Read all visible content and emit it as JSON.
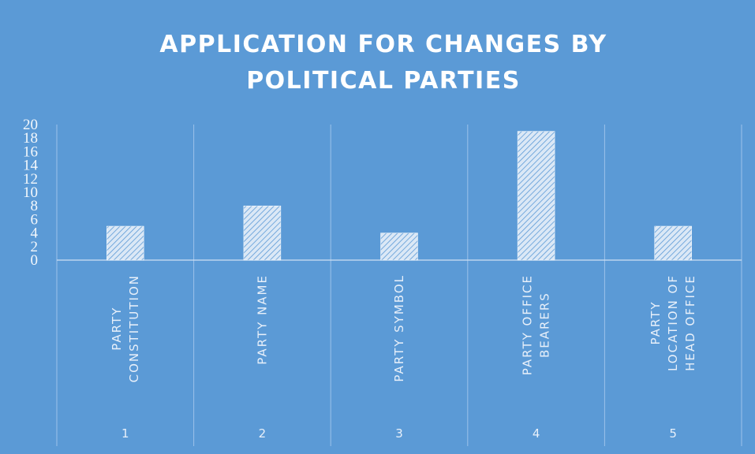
{
  "chart_data": {
    "type": "bar",
    "title": [
      "APPLICATION FOR CHANGES BY",
      "POLITICAL PARTIES"
    ],
    "categories": [
      [
        "PARTY",
        "CONSTITUTION"
      ],
      [
        "PARTY NAME"
      ],
      [
        "PARTY SYMBOL"
      ],
      [
        "PARTY OFFICE",
        "BEARERS"
      ],
      [
        "PARTY",
        "LOCATION OF",
        "HEAD OFFICE"
      ]
    ],
    "category_numbers": [
      "1",
      "2",
      "3",
      "4",
      "5"
    ],
    "values": [
      5,
      8,
      4,
      19,
      5
    ],
    "color": "#ffffff",
    "ylim": [
      0,
      20
    ],
    "yticks": [
      0,
      2,
      4,
      6,
      8,
      10,
      12,
      14,
      16,
      18,
      20
    ],
    "grid": true
  }
}
